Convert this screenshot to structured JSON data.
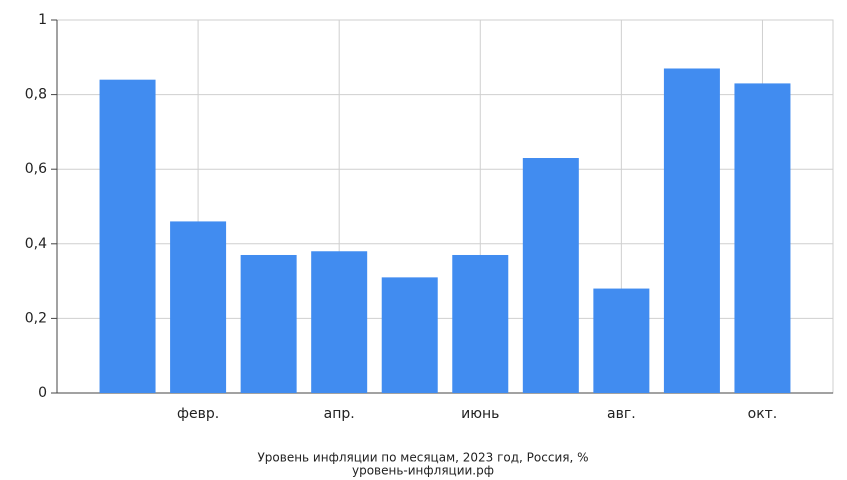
{
  "chart_data": {
    "type": "bar",
    "title": "Уровень инфляции по месяцам, 2023 год, Россия, %",
    "subtitle": "уровень-инфляции.рф",
    "categories": [
      null,
      "февр.",
      null,
      "апр.",
      null,
      "июнь",
      null,
      "авг.",
      null,
      "окт."
    ],
    "values": [
      0.84,
      0.46,
      0.37,
      0.38,
      0.31,
      0.37,
      0.63,
      0.28,
      0.87,
      0.83
    ],
    "color": "#418cf0",
    "ylim": [
      0,
      1
    ],
    "yticks": [
      0,
      {
        "value": 0.2,
        "label": "0,2"
      },
      {
        "value": 0.4,
        "label": "0,4"
      },
      {
        "value": 0.6,
        "label": "0,6"
      },
      {
        "value": 0.8,
        "label": "0,8"
      },
      1
    ],
    "grid": true
  }
}
